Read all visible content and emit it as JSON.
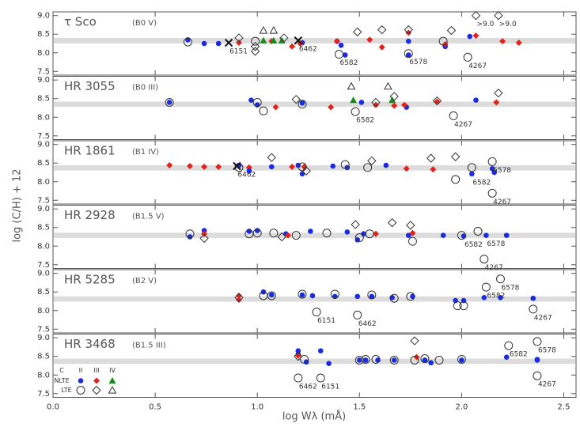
{
  "chart_data": {
    "type": "scatter",
    "xlabel": "log Wλ (mÅ)",
    "ylabel": "log (C/H) + 12",
    "xlim": [
      0,
      2.56
    ],
    "xticks": [
      {
        "value": 0,
        "label": "0.0"
      },
      0.5,
      {
        "value": 1,
        "label": "1.0"
      },
      1.5,
      {
        "value": 2,
        "label": "2.0"
      },
      2.5
    ],
    "ylim": [
      7.4,
      9.1
    ],
    "yticks": [
      7.5,
      {
        "value": 8,
        "label": "8.0"
      },
      8.5,
      {
        "value": 9,
        "label": "9.0"
      }
    ],
    "band_color": "#dcdcdc",
    "legend": {
      "header": [
        "C",
        "II",
        "III",
        "IV"
      ],
      "rows": [
        "NLTE",
        "LTE"
      ],
      "colors": [
        "#1a2be0",
        "#e3231b",
        "#178a17"
      ]
    },
    "panels": [
      {
        "title": "τ Sco",
        "subtitle": "(B0 V)",
        "band": [
          8.25,
          8.4
        ],
        "series": [
          {
            "marker": "circle",
            "filled": true,
            "color": "#1a2be0",
            "x": [
              0.66,
              0.74,
              0.81,
              1.22,
              1.39,
              1.41,
              1.43,
              1.74,
              1.74,
              1.92,
              2.04
            ],
            "values": [
              8.35,
              8.25,
              8.25,
              8.27,
              8.31,
              8.2,
              7.94,
              8.31,
              7.94,
              8.17,
              8.44
            ]
          },
          {
            "marker": "diamond",
            "filled": true,
            "color": "#e3231b",
            "x": [
              0.91,
              1.07,
              1.17,
              1.21,
              1.39,
              1.55,
              1.61,
              1.74,
              1.92,
              2.07,
              2.2,
              2.28
            ],
            "values": [
              8.27,
              8.31,
              8.17,
              8.25,
              8.31,
              8.35,
              8.15,
              8.54,
              8.23,
              8.46,
              8.31,
              8.27
            ]
          },
          {
            "marker": "triangle",
            "filled": true,
            "color": "#178a17",
            "x": [
              1.03,
              1.08,
              1.12
            ],
            "values": [
              8.33,
              8.33,
              8.33
            ]
          },
          {
            "marker": "circle",
            "filled": false,
            "color": "#333333",
            "x": [
              0.66,
              0.99,
              1.4,
              1.74,
              1.91,
              2.03
            ],
            "values": [
              8.29,
              8.31,
              7.96,
              7.98,
              8.31,
              7.88
            ],
            "point_labels": [
              null,
              null,
              "6582",
              "6578",
              null,
              "4267"
            ]
          },
          {
            "marker": "diamond",
            "filled": false,
            "color": "#333333",
            "x": [
              0.91,
              0.99,
              0.99,
              1.13,
              1.49,
              1.61,
              1.74,
              1.95,
              2.07,
              2.18
            ],
            "values": [
              8.4,
              8.17,
              8.04,
              8.4,
              8.56,
              8.62,
              8.62,
              8.6,
              9.0,
              9.0
            ],
            "point_labels": [
              null,
              null,
              null,
              null,
              null,
              null,
              null,
              null,
              ">9.0",
              ">9.0"
            ]
          },
          {
            "marker": "triangle",
            "filled": false,
            "color": "#333333",
            "x": [
              1.03,
              1.08
            ],
            "values": [
              8.6,
              8.6
            ]
          },
          {
            "marker": "cross",
            "filled": false,
            "color": "#111111",
            "x": [
              0.86,
              1.2
            ],
            "values": [
              8.27,
              8.33
            ],
            "point_labels": [
              "6151",
              "6462"
            ]
          }
        ]
      },
      {
        "title": "HR 3055",
        "subtitle": "(B0 III)",
        "band": [
          8.28,
          8.42
        ],
        "series": [
          {
            "marker": "circle",
            "filled": true,
            "color": "#1a2be0",
            "x": [
              0.57,
              0.97,
              1.0,
              1.22,
              1.51,
              1.73,
              2.07
            ],
            "values": [
              8.4,
              8.46,
              8.33,
              8.38,
              8.4,
              8.27,
              8.46
            ]
          },
          {
            "marker": "diamond",
            "filled": true,
            "color": "#e3231b",
            "x": [
              1.09,
              1.36,
              1.58,
              1.67,
              1.72,
              1.88,
              2.17
            ],
            "values": [
              8.27,
              8.27,
              8.33,
              8.31,
              8.33,
              8.42,
              8.4
            ]
          },
          {
            "marker": "triangle",
            "filled": true,
            "color": "#178a17",
            "x": [
              1.47,
              1.66
            ],
            "values": [
              8.46,
              8.46
            ]
          },
          {
            "marker": "circle",
            "filled": false,
            "color": "#333333",
            "x": [
              0.57,
              1.0,
              1.03,
              1.22,
              1.48,
              1.96
            ],
            "values": [
              8.4,
              8.4,
              8.17,
              8.35,
              8.15,
              8.04
            ],
            "point_labels": [
              null,
              null,
              null,
              null,
              "6582",
              "4267"
            ]
          },
          {
            "marker": "diamond",
            "filled": false,
            "color": "#333333",
            "x": [
              1.19,
              1.58,
              1.67,
              1.88,
              2.18
            ],
            "values": [
              8.48,
              8.4,
              8.56,
              8.44,
              8.65
            ]
          },
          {
            "marker": "triangle",
            "filled": false,
            "color": "#333333",
            "x": [
              1.46,
              1.64
            ],
            "values": [
              8.83,
              8.83
            ]
          }
        ]
      },
      {
        "title": "HR 1861",
        "subtitle": "(B1 IV)",
        "band": [
          8.3,
          8.44
        ],
        "series": [
          {
            "marker": "diamond",
            "filled": true,
            "color": "#e3231b",
            "x": [
              0.57,
              0.67,
              0.74,
              0.81,
              0.96,
              1.17,
              1.23,
              1.73,
              1.86
            ],
            "values": [
              8.44,
              8.42,
              8.4,
              8.4,
              8.38,
              8.4,
              8.4,
              8.35,
              8.33
            ]
          },
          {
            "marker": "circle",
            "filled": true,
            "color": "#1a2be0",
            "x": [
              0.91,
              0.96,
              1.07,
              1.2,
              1.22,
              1.37,
              1.44,
              1.63,
              2.05,
              2.15,
              2.16
            ],
            "values": [
              8.44,
              8.29,
              8.4,
              8.44,
              8.21,
              8.42,
              8.38,
              8.44,
              8.21,
              8.35,
              8.25
            ],
            "point_labels": [
              null,
              null,
              null,
              null,
              null,
              null,
              null,
              null,
              "6582",
              null,
              null
            ]
          },
          {
            "marker": "circle",
            "filled": false,
            "color": "#333333",
            "x": [
              0.91,
              1.22,
              1.43,
              1.54,
              1.97,
              2.05,
              2.15,
              2.15
            ],
            "values": [
              8.38,
              8.4,
              8.46,
              8.38,
              8.06,
              8.38,
              8.54,
              7.69
            ],
            "point_labels": [
              null,
              null,
              null,
              null,
              null,
              null,
              "6578",
              "4267"
            ]
          },
          {
            "marker": "diamond",
            "filled": false,
            "color": "#333333",
            "x": [
              1.07,
              1.24,
              1.56,
              1.85,
              1.97
            ],
            "values": [
              8.65,
              8.29,
              8.56,
              8.63,
              8.67
            ]
          },
          {
            "marker": "cross",
            "filled": false,
            "color": "#111111",
            "x": [
              0.9
            ],
            "values": [
              8.42
            ],
            "point_labels": [
              "6462"
            ]
          }
        ]
      },
      {
        "title": "HR 2928",
        "subtitle": "(B1.5 V)",
        "band": [
          8.22,
          8.36
        ],
        "series": [
          {
            "marker": "circle",
            "filled": true,
            "color": "#1a2be0",
            "x": [
              0.67,
              0.74,
              0.96,
              1.0,
              1.14,
              1.26,
              1.44,
              1.49,
              1.52,
              1.74,
              1.91,
              2.01,
              2.12,
              2.22
            ],
            "values": [
              8.25,
              8.42,
              8.4,
              8.42,
              8.33,
              8.4,
              8.38,
              8.17,
              8.33,
              8.29,
              8.29,
              8.27,
              8.29,
              8.29
            ],
            "point_labels": [
              null,
              null,
              null,
              null,
              null,
              null,
              null,
              null,
              null,
              null,
              null,
              "6582",
              "6578",
              null
            ]
          },
          {
            "marker": "diamond",
            "filled": true,
            "color": "#e3231b",
            "x": [
              0.74,
              1.15,
              1.58,
              1.76
            ],
            "values": [
              8.33,
              8.29,
              8.33,
              8.35
            ]
          },
          {
            "marker": "circle",
            "filled": false,
            "color": "#333333",
            "x": [
              0.67,
              0.96,
              1.0,
              1.08,
              1.19,
              1.34,
              1.5,
              1.55,
              1.76,
              2.0,
              2.08,
              2.11
            ],
            "values": [
              8.33,
              8.33,
              8.35,
              8.35,
              8.29,
              8.35,
              8.23,
              8.33,
              8.13,
              8.29,
              8.4,
              7.65
            ],
            "point_labels": [
              null,
              null,
              null,
              null,
              null,
              null,
              null,
              null,
              null,
              null,
              null,
              "4267"
            ]
          },
          {
            "marker": "diamond",
            "filled": false,
            "color": "#333333",
            "x": [
              0.74,
              1.12,
              1.48,
              1.66,
              1.75
            ],
            "values": [
              8.21,
              8.25,
              8.58,
              8.63,
              8.56
            ]
          }
        ]
      },
      {
        "title": "HR 5285",
        "subtitle": "(B2 V)",
        "band": [
          8.24,
          8.38
        ],
        "series": [
          {
            "marker": "diamond",
            "filled": true,
            "color": "#e3231b",
            "x": [
              0.91,
              0.91
            ],
            "values": [
              8.4,
              8.29
            ]
          },
          {
            "marker": "diamond",
            "filled": false,
            "color": "#333333",
            "x": [
              0.91
            ],
            "values": [
              8.35
            ]
          },
          {
            "marker": "circle",
            "filled": true,
            "color": "#1a2be0",
            "x": [
              1.03,
              1.07,
              1.22,
              1.27,
              1.38,
              1.49,
              1.56,
              1.66,
              1.76,
              1.97,
              2.01,
              2.11,
              2.19,
              2.35
            ],
            "values": [
              8.5,
              8.42,
              8.42,
              8.4,
              8.38,
              8.38,
              8.38,
              8.35,
              8.38,
              8.27,
              8.27,
              8.35,
              8.35,
              8.33
            ]
          },
          {
            "marker": "circle",
            "filled": false,
            "color": "#333333",
            "x": [
              1.03,
              1.07,
              1.22,
              1.29,
              1.38,
              1.49,
              1.56,
              1.67,
              1.75,
              1.98,
              2.01,
              2.12,
              2.19,
              2.35
            ],
            "values": [
              8.4,
              8.4,
              8.44,
              7.96,
              8.44,
              7.88,
              8.42,
              8.33,
              8.38,
              8.13,
              8.13,
              8.63,
              8.85,
              8.04
            ],
            "point_labels": [
              null,
              null,
              null,
              "6151",
              null,
              "6462",
              null,
              null,
              null,
              null,
              null,
              "6582",
              "6578",
              "4267"
            ]
          }
        ]
      },
      {
        "title": "HR 3468",
        "subtitle": "(B1.5 III)",
        "band": [
          8.3,
          8.44
        ],
        "series": [
          {
            "marker": "circle",
            "filled": true,
            "color": "#1a2be0",
            "x": [
              1.2,
              1.2,
              1.31,
              1.24,
              1.35,
              1.5,
              1.53,
              1.59,
              1.67,
              1.82,
              1.85,
              2.0,
              2.22,
              2.37,
              2.37
            ],
            "values": [
              8.65,
              8.56,
              8.65,
              8.35,
              8.31,
              8.4,
              8.4,
              8.4,
              8.4,
              8.4,
              8.33,
              8.4,
              8.48,
              8.42,
              8.4
            ]
          },
          {
            "marker": "diamond",
            "filled": true,
            "color": "#e3231b",
            "x": [
              1.2,
              1.78
            ],
            "values": [
              8.52,
              8.48
            ]
          },
          {
            "marker": "circle",
            "filled": false,
            "color": "#333333",
            "x": [
              1.23,
              1.5,
              1.53,
              1.58,
              1.67,
              1.77,
              1.82,
              1.89,
              2.0,
              2.23,
              2.37,
              2.37,
              1.2,
              1.31
            ],
            "values": [
              8.42,
              8.4,
              8.42,
              8.42,
              8.4,
              8.4,
              8.44,
              8.4,
              8.42,
              8.79,
              8.9,
              7.98,
              7.92,
              7.92
            ],
            "point_labels": [
              null,
              null,
              null,
              null,
              null,
              null,
              null,
              null,
              null,
              "6582",
              "6578",
              "4267",
              "6462",
              "6151"
            ]
          },
          {
            "marker": "diamond",
            "filled": false,
            "color": "#333333",
            "x": [
              1.2,
              1.77
            ],
            "values": [
              8.5,
              8.92
            ]
          }
        ]
      }
    ]
  }
}
